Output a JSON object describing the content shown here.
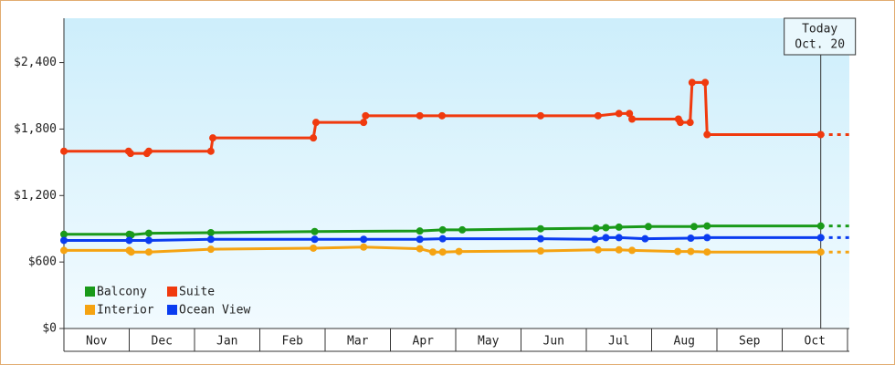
{
  "chart_data": {
    "type": "line",
    "xlim": [
      0,
      12
    ],
    "xticks": [
      {
        "value": 0.5,
        "label": "Nov"
      },
      {
        "value": 1.5,
        "label": "Dec"
      },
      {
        "value": 2.5,
        "label": "Jan"
      },
      {
        "value": 3.5,
        "label": "Feb"
      },
      {
        "value": 4.5,
        "label": "Mar"
      },
      {
        "value": 5.5,
        "label": "Apr"
      },
      {
        "value": 6.5,
        "label": "May"
      },
      {
        "value": 7.5,
        "label": "Jun"
      },
      {
        "value": 8.5,
        "label": "Jul"
      },
      {
        "value": 9.5,
        "label": "Aug"
      },
      {
        "value": 10.5,
        "label": "Sep"
      },
      {
        "value": 11.5,
        "label": "Oct"
      }
    ],
    "ylim": [
      0,
      2800
    ],
    "yticks": [
      {
        "value": 0,
        "label": "$0"
      },
      {
        "value": 600,
        "label": "$600"
      },
      {
        "value": 1200,
        "label": "$1,200"
      },
      {
        "value": 1800,
        "label": "$1,800"
      },
      {
        "value": 2400,
        "label": "$2,400"
      }
    ],
    "annotation": {
      "x": 11.59,
      "lines": [
        "Today",
        "Oct. 20"
      ]
    },
    "legend": "lower left",
    "series": [
      {
        "name": "Balcony",
        "color": "#1a9a1a",
        "x": [
          0,
          1.0,
          1.03,
          1.3,
          2.25,
          3.84,
          5.45,
          5.8,
          6.1,
          7.3,
          8.15,
          8.3,
          8.5,
          8.95,
          9.65,
          9.85,
          11.59
        ],
        "values": [
          850,
          850,
          845,
          860,
          865,
          875,
          880,
          890,
          890,
          900,
          905,
          910,
          915,
          920,
          920,
          925,
          925
        ]
      },
      {
        "name": "Suite",
        "color": "#f03a0e",
        "x": [
          0,
          0.99,
          1.02,
          1.27,
          1.3,
          2.25,
          2.28,
          3.82,
          3.86,
          4.59,
          4.62,
          5.45,
          5.79,
          7.3,
          8.18,
          8.5,
          8.66,
          8.7,
          9.41,
          9.44,
          9.59,
          9.62,
          9.82,
          9.85,
          11.59
        ],
        "values": [
          1600,
          1600,
          1580,
          1580,
          1600,
          1600,
          1720,
          1720,
          1860,
          1860,
          1920,
          1920,
          1920,
          1920,
          1920,
          1940,
          1940,
          1890,
          1890,
          1860,
          1860,
          2220,
          2220,
          1750,
          1750
        ]
      },
      {
        "name": "Interior",
        "color": "#f5a312",
        "x": [
          0,
          1.0,
          1.03,
          1.3,
          2.25,
          3.82,
          4.59,
          5.45,
          5.65,
          5.8,
          6.05,
          7.3,
          8.18,
          8.5,
          8.7,
          9.4,
          9.6,
          9.85,
          11.59
        ],
        "values": [
          705,
          705,
          690,
          690,
          715,
          725,
          735,
          720,
          690,
          690,
          695,
          700,
          710,
          710,
          705,
          695,
          695,
          690,
          690
        ]
      },
      {
        "name": "Ocean View",
        "color": "#0a3cf0",
        "x": [
          0,
          1.0,
          1.3,
          2.25,
          3.84,
          4.59,
          5.45,
          5.8,
          7.3,
          8.13,
          8.3,
          8.5,
          8.9,
          9.6,
          9.85,
          11.59
        ],
        "values": [
          795,
          795,
          795,
          805,
          805,
          805,
          805,
          810,
          810,
          805,
          820,
          820,
          810,
          815,
          820,
          820
        ]
      }
    ]
  }
}
